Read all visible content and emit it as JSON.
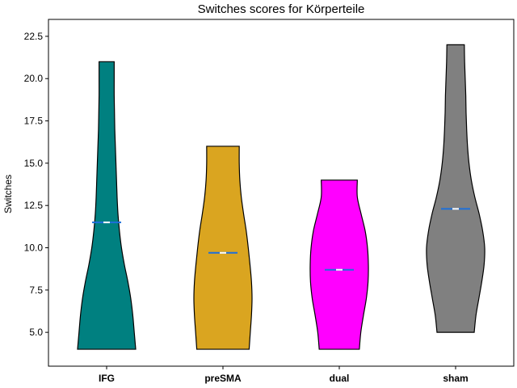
{
  "chart_data": {
    "type": "violin",
    "title": "Switches scores for Körperteile",
    "xlabel": "",
    "ylabel": "Switches",
    "ylim": [
      3.0,
      23.5
    ],
    "y_ticks": [
      "5.0",
      "7.5",
      "10.0",
      "12.5",
      "15.0",
      "17.5",
      "20.0",
      "22.5"
    ],
    "categories": [
      "IFG",
      "preSMA",
      "dual",
      "sham"
    ],
    "series": [
      {
        "category": "IFG",
        "color": "#008080",
        "min": 4,
        "max": 21,
        "mean": 11.5,
        "density_profile": [
          [
            4,
            1.0
          ],
          [
            5,
            0.95
          ],
          [
            6,
            0.9
          ],
          [
            7,
            0.83
          ],
          [
            8,
            0.73
          ],
          [
            9,
            0.61
          ],
          [
            10,
            0.51
          ],
          [
            11,
            0.44
          ],
          [
            12,
            0.39
          ],
          [
            13,
            0.36
          ],
          [
            14,
            0.34
          ],
          [
            15,
            0.32
          ],
          [
            16,
            0.3
          ],
          [
            17,
            0.28
          ],
          [
            18,
            0.27
          ],
          [
            19,
            0.26
          ],
          [
            20,
            0.26
          ],
          [
            21,
            0.26
          ]
        ]
      },
      {
        "category": "preSMA",
        "color": "#DAA520",
        "min": 4,
        "max": 16,
        "mean": 9.7,
        "density_profile": [
          [
            4,
            0.9
          ],
          [
            5,
            0.94
          ],
          [
            6,
            0.98
          ],
          [
            7,
            1.0
          ],
          [
            8,
            0.98
          ],
          [
            9,
            0.93
          ],
          [
            10,
            0.87
          ],
          [
            11,
            0.8
          ],
          [
            12,
            0.71
          ],
          [
            13,
            0.63
          ],
          [
            14,
            0.58
          ],
          [
            15,
            0.56
          ],
          [
            16,
            0.56
          ]
        ]
      },
      {
        "category": "dual",
        "color": "#FF00FF",
        "min": 4,
        "max": 14,
        "mean": 8.7,
        "density_profile": [
          [
            4,
            0.69
          ],
          [
            5,
            0.74
          ],
          [
            6,
            0.83
          ],
          [
            7,
            0.93
          ],
          [
            8,
            0.99
          ],
          [
            9,
            1.0
          ],
          [
            10,
            0.97
          ],
          [
            11,
            0.89
          ],
          [
            12,
            0.75
          ],
          [
            13,
            0.62
          ],
          [
            14,
            0.62
          ]
        ]
      },
      {
        "category": "sham",
        "color": "#808080",
        "min": 5,
        "max": 22,
        "mean": 12.3,
        "density_profile": [
          [
            5,
            0.64
          ],
          [
            6,
            0.7
          ],
          [
            7,
            0.8
          ],
          [
            8,
            0.9
          ],
          [
            9,
            0.98
          ],
          [
            10,
            1.0
          ],
          [
            11,
            0.93
          ],
          [
            12,
            0.81
          ],
          [
            13,
            0.66
          ],
          [
            14,
            0.54
          ],
          [
            15,
            0.46
          ],
          [
            16,
            0.41
          ],
          [
            17,
            0.38
          ],
          [
            18,
            0.36
          ],
          [
            19,
            0.35
          ],
          [
            20,
            0.33
          ],
          [
            21,
            0.31
          ],
          [
            22,
            0.3
          ]
        ]
      }
    ],
    "mean_marker_color": "#1E6FD9",
    "grid": false,
    "legend": "none"
  }
}
